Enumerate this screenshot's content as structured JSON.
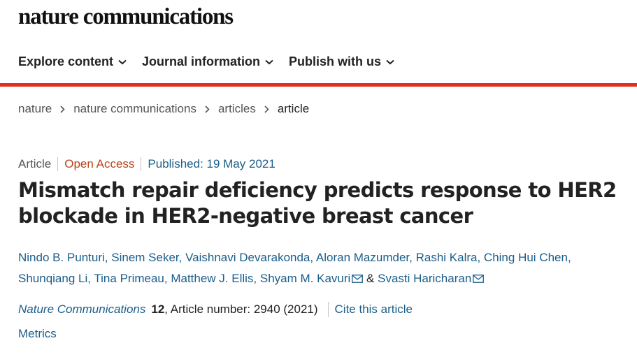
{
  "header": {
    "logo": "nature communications",
    "nav": [
      {
        "label": "Explore content"
      },
      {
        "label": "Journal information"
      },
      {
        "label": "Publish with us"
      }
    ],
    "accent_color": "#e0301e"
  },
  "breadcrumb": [
    {
      "label": "nature"
    },
    {
      "label": "nature communications"
    },
    {
      "label": "articles"
    },
    {
      "label": "article"
    }
  ],
  "article": {
    "type": "Article",
    "access": "Open Access",
    "published": "Published: 19 May 2021",
    "title": "Mismatch repair deficiency predicts response to HER2 blockade in HER2-negative breast cancer",
    "authors": [
      "Nindo B. Punturi",
      "Sinem Seker",
      "Vaishnavi Devarakonda",
      "Aloran Mazumder",
      "Rashi Kalra",
      "Ching Hui Chen",
      "Shunqiang Li",
      "Tina Primeau",
      "Matthew J. Ellis",
      "Shyam M. Kavuri",
      "Svasti Haricharan"
    ],
    "author_joiner": "&",
    "corresponding_icon": "mail-icon",
    "journal": "Nature Communications",
    "volume": "12",
    "article_number": ", Article number: 2940 (2021)",
    "cite_label": "Cite this article",
    "metrics_label": "Metrics"
  }
}
